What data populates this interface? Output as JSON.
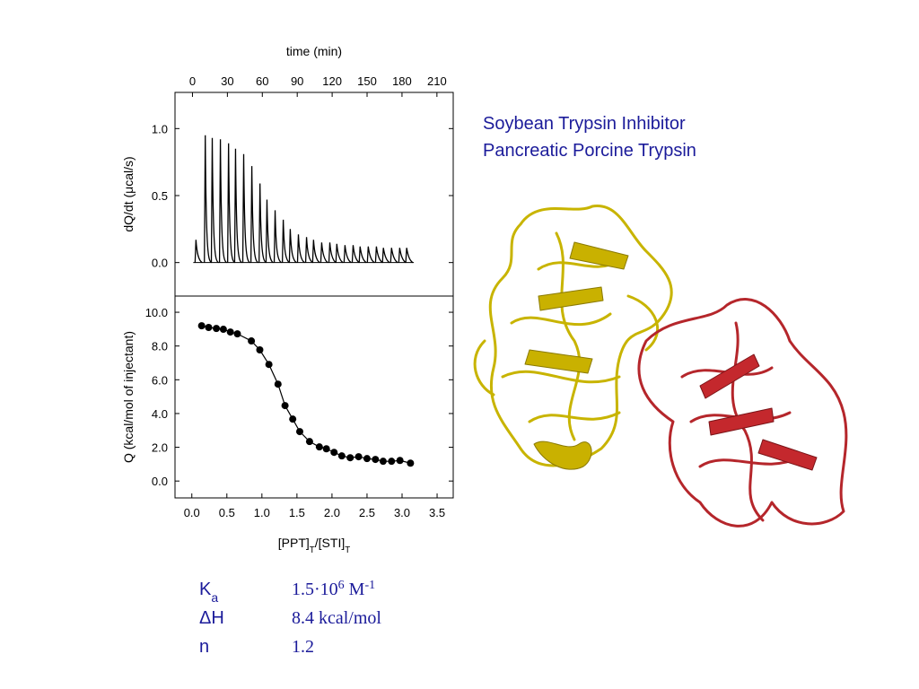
{
  "chart_data": [
    {
      "type": "peaks",
      "xlabel": "time (min)",
      "ylabel": "dQ/dt (μcal/s)",
      "x": [
        3,
        11,
        17,
        24,
        31,
        37,
        44,
        51,
        58,
        64,
        71,
        78,
        84,
        91,
        98,
        104,
        111,
        118,
        124,
        131,
        138,
        144,
        151,
        158,
        164,
        171,
        178,
        184
      ],
      "values": [
        0.17,
        0.95,
        0.93,
        0.92,
        0.89,
        0.85,
        0.81,
        0.72,
        0.59,
        0.47,
        0.39,
        0.32,
        0.25,
        0.21,
        0.19,
        0.17,
        0.15,
        0.15,
        0.14,
        0.13,
        0.13,
        0.12,
        0.12,
        0.12,
        0.11,
        0.11,
        0.11,
        0.11
      ],
      "color": "#000000",
      "xlim": [
        -15,
        224
      ],
      "xticks": [
        0,
        30,
        60,
        90,
        120,
        150,
        180,
        210
      ],
      "ylim": [
        -0.25,
        1.27
      ],
      "yticks": [
        {
          "value": 0,
          "label": "0.0"
        },
        0.5,
        {
          "value": 1,
          "label": "1.0"
        }
      ]
    },
    {
      "type": "scatter",
      "xlabel": [
        "[PPT]",
        "T",
        "/[STI]",
        "T"
      ],
      "ylabel": "Q (kcal/mol of injectant)",
      "x": [
        0.14,
        0.24,
        0.35,
        0.45,
        0.55,
        0.65,
        0.85,
        0.97,
        1.1,
        1.23,
        1.33,
        1.44,
        1.54,
        1.68,
        1.82,
        1.92,
        2.03,
        2.14,
        2.26,
        2.38,
        2.5,
        2.62,
        2.73,
        2.85,
        2.97,
        3.12
      ],
      "values": [
        9.2,
        9.1,
        9.04,
        8.99,
        8.83,
        8.72,
        8.3,
        7.77,
        6.91,
        5.74,
        4.47,
        3.67,
        2.93,
        2.34,
        2.02,
        1.91,
        1.7,
        1.49,
        1.38,
        1.44,
        1.33,
        1.28,
        1.17,
        1.17,
        1.22,
        1.06
      ],
      "color": "#000000",
      "xlim": [
        -0.24,
        3.73
      ],
      "xticks": [
        {
          "value": 0,
          "label": "0.0"
        },
        0.5,
        {
          "value": 1,
          "label": "1.0"
        },
        1.5,
        {
          "value": 2,
          "label": "2.0"
        },
        2.5,
        {
          "value": 3,
          "label": "3.0"
        },
        3.5
      ],
      "ylim": [
        -1.0,
        10.96
      ],
      "yticks": [
        {
          "value": 0,
          "label": "0.0"
        },
        {
          "value": 2,
          "label": "2.0"
        },
        {
          "value": 4,
          "label": "4.0"
        },
        {
          "value": 6,
          "label": "6.0"
        },
        {
          "value": 8,
          "label": "8.0"
        },
        {
          "value": 10,
          "label": "10.0"
        }
      ]
    }
  ],
  "legend_titles": [
    "Soybean Trypsin Inhibitor",
    "Pancreatic Porcine Trypsin"
  ],
  "parameters": [
    {
      "symbol": [
        "K",
        "a"
      ],
      "value": [
        "1.5·10",
        "6",
        " M",
        "-1"
      ]
    },
    {
      "symbol": [
        "ΔH"
      ],
      "value": [
        "8.4 kcal/mol"
      ]
    },
    {
      "symbol": [
        "n"
      ],
      "value": [
        "1.2"
      ]
    }
  ]
}
